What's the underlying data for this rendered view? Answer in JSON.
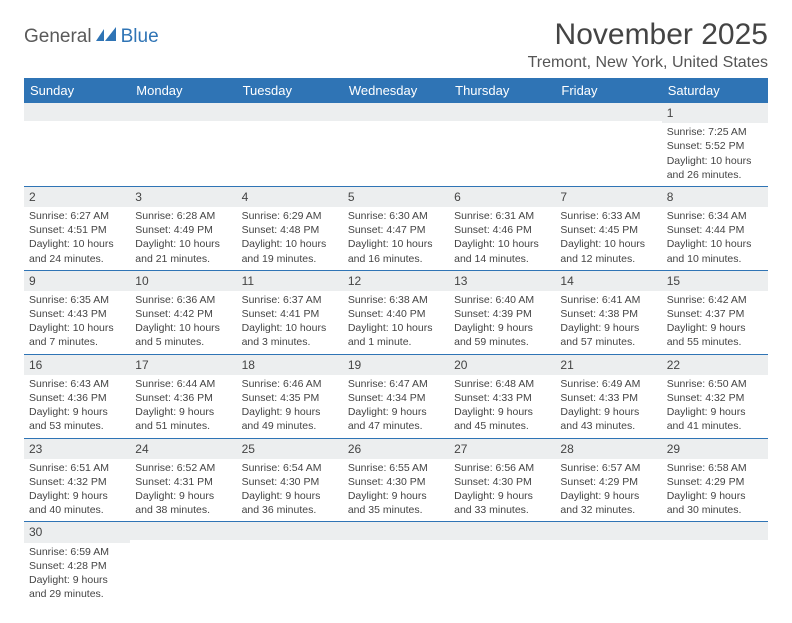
{
  "logo": {
    "part1": "General",
    "part2": "Blue"
  },
  "title": "November 2025",
  "location": "Tremont, New York, United States",
  "colors": {
    "header_bg": "#2f74b5",
    "header_text": "#ffffff",
    "daynum_bg": "#eceeef",
    "row_border": "#2f74b5",
    "body_text": "#444444",
    "logo_gray": "#5a5a5a",
    "logo_blue": "#2f74b5"
  },
  "weekdays": [
    "Sunday",
    "Monday",
    "Tuesday",
    "Wednesday",
    "Thursday",
    "Friday",
    "Saturday"
  ],
  "weeks": [
    [
      {
        "day": "",
        "sunrise": "",
        "sunset": "",
        "daylight": ""
      },
      {
        "day": "",
        "sunrise": "",
        "sunset": "",
        "daylight": ""
      },
      {
        "day": "",
        "sunrise": "",
        "sunset": "",
        "daylight": ""
      },
      {
        "day": "",
        "sunrise": "",
        "sunset": "",
        "daylight": ""
      },
      {
        "day": "",
        "sunrise": "",
        "sunset": "",
        "daylight": ""
      },
      {
        "day": "",
        "sunrise": "",
        "sunset": "",
        "daylight": ""
      },
      {
        "day": "1",
        "sunrise": "Sunrise: 7:25 AM",
        "sunset": "Sunset: 5:52 PM",
        "daylight": "Daylight: 10 hours and 26 minutes."
      }
    ],
    [
      {
        "day": "2",
        "sunrise": "Sunrise: 6:27 AM",
        "sunset": "Sunset: 4:51 PM",
        "daylight": "Daylight: 10 hours and 24 minutes."
      },
      {
        "day": "3",
        "sunrise": "Sunrise: 6:28 AM",
        "sunset": "Sunset: 4:49 PM",
        "daylight": "Daylight: 10 hours and 21 minutes."
      },
      {
        "day": "4",
        "sunrise": "Sunrise: 6:29 AM",
        "sunset": "Sunset: 4:48 PM",
        "daylight": "Daylight: 10 hours and 19 minutes."
      },
      {
        "day": "5",
        "sunrise": "Sunrise: 6:30 AM",
        "sunset": "Sunset: 4:47 PM",
        "daylight": "Daylight: 10 hours and 16 minutes."
      },
      {
        "day": "6",
        "sunrise": "Sunrise: 6:31 AM",
        "sunset": "Sunset: 4:46 PM",
        "daylight": "Daylight: 10 hours and 14 minutes."
      },
      {
        "day": "7",
        "sunrise": "Sunrise: 6:33 AM",
        "sunset": "Sunset: 4:45 PM",
        "daylight": "Daylight: 10 hours and 12 minutes."
      },
      {
        "day": "8",
        "sunrise": "Sunrise: 6:34 AM",
        "sunset": "Sunset: 4:44 PM",
        "daylight": "Daylight: 10 hours and 10 minutes."
      }
    ],
    [
      {
        "day": "9",
        "sunrise": "Sunrise: 6:35 AM",
        "sunset": "Sunset: 4:43 PM",
        "daylight": "Daylight: 10 hours and 7 minutes."
      },
      {
        "day": "10",
        "sunrise": "Sunrise: 6:36 AM",
        "sunset": "Sunset: 4:42 PM",
        "daylight": "Daylight: 10 hours and 5 minutes."
      },
      {
        "day": "11",
        "sunrise": "Sunrise: 6:37 AM",
        "sunset": "Sunset: 4:41 PM",
        "daylight": "Daylight: 10 hours and 3 minutes."
      },
      {
        "day": "12",
        "sunrise": "Sunrise: 6:38 AM",
        "sunset": "Sunset: 4:40 PM",
        "daylight": "Daylight: 10 hours and 1 minute."
      },
      {
        "day": "13",
        "sunrise": "Sunrise: 6:40 AM",
        "sunset": "Sunset: 4:39 PM",
        "daylight": "Daylight: 9 hours and 59 minutes."
      },
      {
        "day": "14",
        "sunrise": "Sunrise: 6:41 AM",
        "sunset": "Sunset: 4:38 PM",
        "daylight": "Daylight: 9 hours and 57 minutes."
      },
      {
        "day": "15",
        "sunrise": "Sunrise: 6:42 AM",
        "sunset": "Sunset: 4:37 PM",
        "daylight": "Daylight: 9 hours and 55 minutes."
      }
    ],
    [
      {
        "day": "16",
        "sunrise": "Sunrise: 6:43 AM",
        "sunset": "Sunset: 4:36 PM",
        "daylight": "Daylight: 9 hours and 53 minutes."
      },
      {
        "day": "17",
        "sunrise": "Sunrise: 6:44 AM",
        "sunset": "Sunset: 4:36 PM",
        "daylight": "Daylight: 9 hours and 51 minutes."
      },
      {
        "day": "18",
        "sunrise": "Sunrise: 6:46 AM",
        "sunset": "Sunset: 4:35 PM",
        "daylight": "Daylight: 9 hours and 49 minutes."
      },
      {
        "day": "19",
        "sunrise": "Sunrise: 6:47 AM",
        "sunset": "Sunset: 4:34 PM",
        "daylight": "Daylight: 9 hours and 47 minutes."
      },
      {
        "day": "20",
        "sunrise": "Sunrise: 6:48 AM",
        "sunset": "Sunset: 4:33 PM",
        "daylight": "Daylight: 9 hours and 45 minutes."
      },
      {
        "day": "21",
        "sunrise": "Sunrise: 6:49 AM",
        "sunset": "Sunset: 4:33 PM",
        "daylight": "Daylight: 9 hours and 43 minutes."
      },
      {
        "day": "22",
        "sunrise": "Sunrise: 6:50 AM",
        "sunset": "Sunset: 4:32 PM",
        "daylight": "Daylight: 9 hours and 41 minutes."
      }
    ],
    [
      {
        "day": "23",
        "sunrise": "Sunrise: 6:51 AM",
        "sunset": "Sunset: 4:32 PM",
        "daylight": "Daylight: 9 hours and 40 minutes."
      },
      {
        "day": "24",
        "sunrise": "Sunrise: 6:52 AM",
        "sunset": "Sunset: 4:31 PM",
        "daylight": "Daylight: 9 hours and 38 minutes."
      },
      {
        "day": "25",
        "sunrise": "Sunrise: 6:54 AM",
        "sunset": "Sunset: 4:30 PM",
        "daylight": "Daylight: 9 hours and 36 minutes."
      },
      {
        "day": "26",
        "sunrise": "Sunrise: 6:55 AM",
        "sunset": "Sunset: 4:30 PM",
        "daylight": "Daylight: 9 hours and 35 minutes."
      },
      {
        "day": "27",
        "sunrise": "Sunrise: 6:56 AM",
        "sunset": "Sunset: 4:30 PM",
        "daylight": "Daylight: 9 hours and 33 minutes."
      },
      {
        "day": "28",
        "sunrise": "Sunrise: 6:57 AM",
        "sunset": "Sunset: 4:29 PM",
        "daylight": "Daylight: 9 hours and 32 minutes."
      },
      {
        "day": "29",
        "sunrise": "Sunrise: 6:58 AM",
        "sunset": "Sunset: 4:29 PM",
        "daylight": "Daylight: 9 hours and 30 minutes."
      }
    ],
    [
      {
        "day": "30",
        "sunrise": "Sunrise: 6:59 AM",
        "sunset": "Sunset: 4:28 PM",
        "daylight": "Daylight: 9 hours and 29 minutes."
      },
      {
        "day": "",
        "sunrise": "",
        "sunset": "",
        "daylight": ""
      },
      {
        "day": "",
        "sunrise": "",
        "sunset": "",
        "daylight": ""
      },
      {
        "day": "",
        "sunrise": "",
        "sunset": "",
        "daylight": ""
      },
      {
        "day": "",
        "sunrise": "",
        "sunset": "",
        "daylight": ""
      },
      {
        "day": "",
        "sunrise": "",
        "sunset": "",
        "daylight": ""
      },
      {
        "day": "",
        "sunrise": "",
        "sunset": "",
        "daylight": ""
      }
    ]
  ]
}
